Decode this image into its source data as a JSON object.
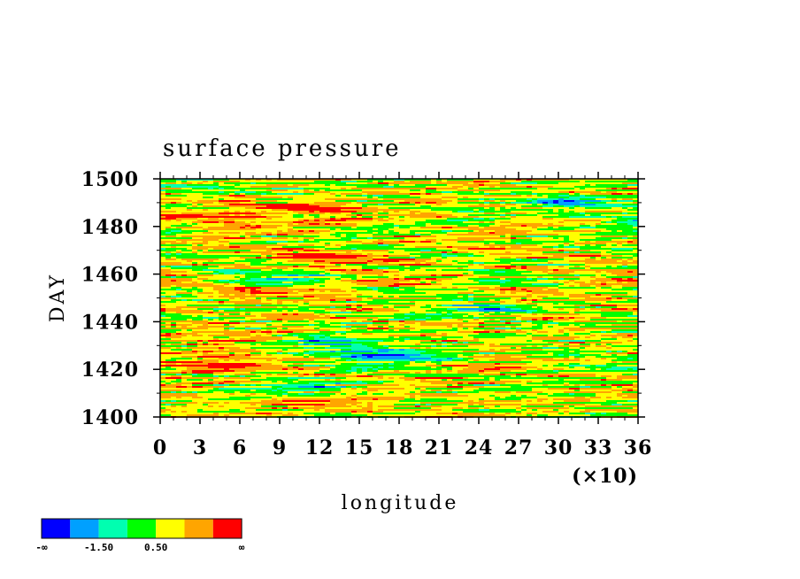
{
  "chart_data": {
    "type": "heatmap",
    "title": "surface pressure",
    "xlabel": "longitude",
    "ylabel": "DAY",
    "x_multiplier_label": "(×10)",
    "xlim": [
      0,
      36
    ],
    "ylim": [
      1400,
      1500
    ],
    "x_ticks": [
      "0",
      "3",
      "6",
      "9",
      "12",
      "15",
      "18",
      "21",
      "24",
      "27",
      "30",
      "33",
      "36"
    ],
    "y_ticks": [
      "1400",
      "1420",
      "1440",
      "1460",
      "1480",
      "1500"
    ],
    "colorbar": {
      "colors": [
        "#0000ff",
        "#00a0ff",
        "#00ffb0",
        "#00ff00",
        "#ffff00",
        "#ffa500",
        "#ff0000"
      ],
      "labels": [
        "-∞",
        "-1.50",
        "0.50",
        "∞"
      ]
    },
    "field_description_levels": [
      -3.5,
      -2.5,
      -1.5,
      -0.5,
      0.5,
      1.5
    ]
  }
}
